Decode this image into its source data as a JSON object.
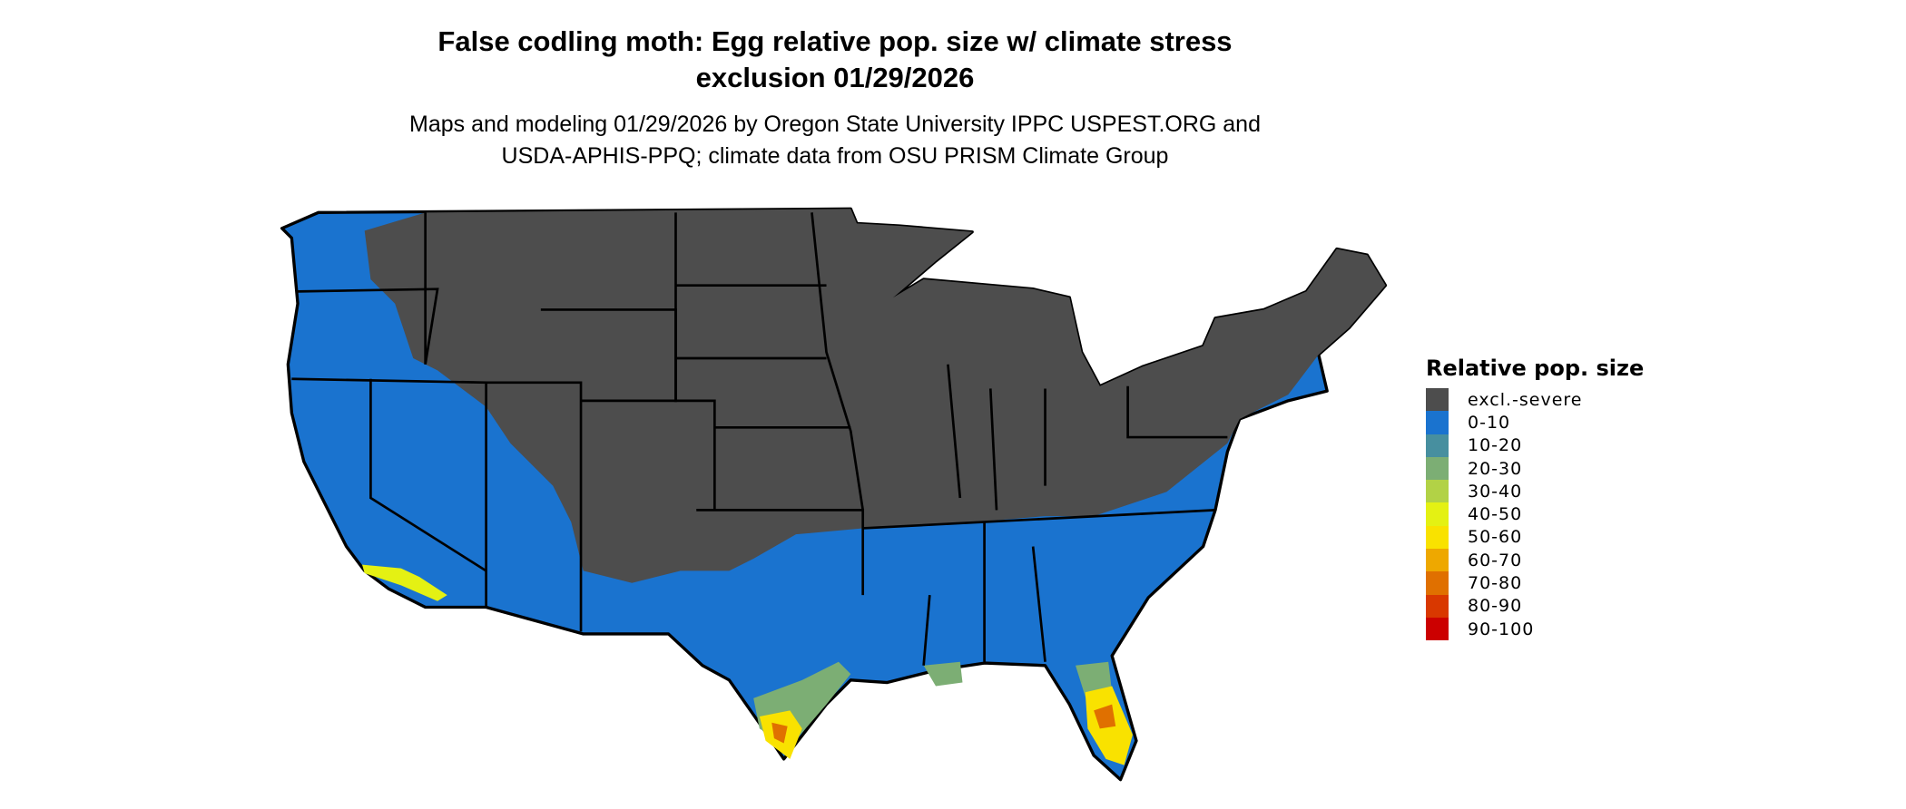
{
  "title_line1": "False codling moth: Egg relative pop. size w/ climate stress",
  "title_line2": "exclusion 01/29/2026",
  "subtitle_line1": "Maps and modeling 01/29/2026 by Oregon State University IPPC USPEST.ORG and",
  "subtitle_line2": "USDA-APHIS-PPQ; climate data from OSU PRISM Climate Group",
  "legend": {
    "title": "Relative pop. size",
    "items": [
      {
        "label": "excl.-severe",
        "color": "#4d4d4d"
      },
      {
        "label": "0-10",
        "color": "#1a73cf"
      },
      {
        "label": "10-20",
        "color": "#478f9f"
      },
      {
        "label": "20-30",
        "color": "#7cae74"
      },
      {
        "label": "30-40",
        "color": "#b2d246"
      },
      {
        "label": "40-50",
        "color": "#e4f113"
      },
      {
        "label": "50-60",
        "color": "#f9e200"
      },
      {
        "label": "60-70",
        "color": "#eea800"
      },
      {
        "label": "70-80",
        "color": "#e07000"
      },
      {
        "label": "80-90",
        "color": "#d93800"
      },
      {
        "label": "90-100",
        "color": "#cc0000"
      }
    ]
  }
}
